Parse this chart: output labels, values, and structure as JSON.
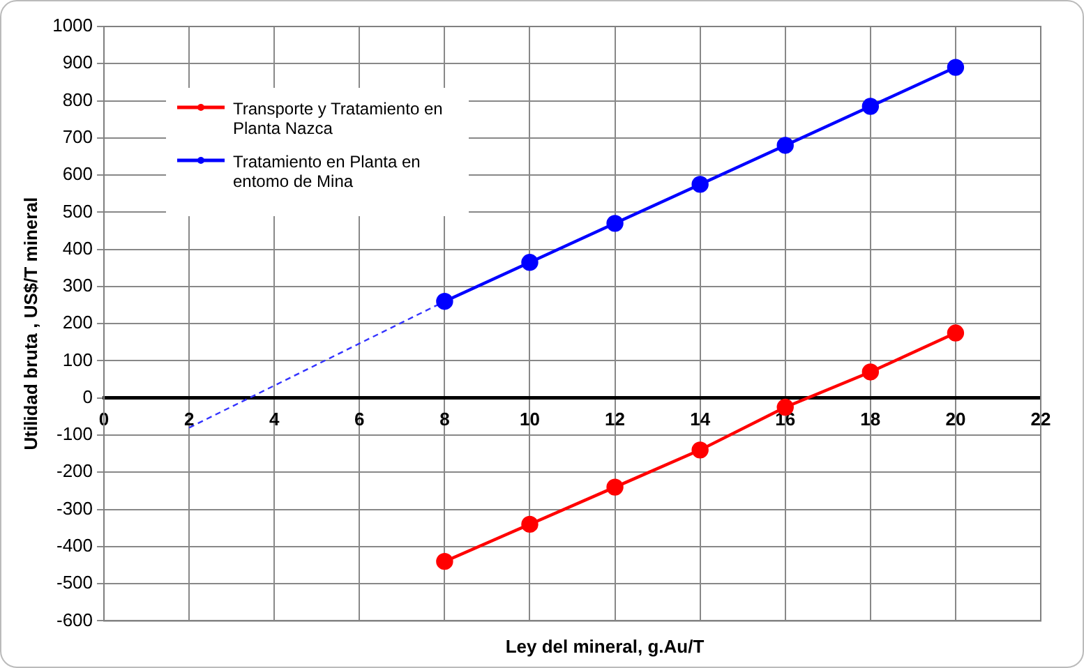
{
  "chart_data": {
    "type": "line",
    "xlabel": "Ley del mineral, g.Au/T",
    "ylabel": "Utilidad bruta , US$/T mineral",
    "xlim": [
      0,
      22
    ],
    "xticks": [
      0,
      2,
      4,
      6,
      8,
      10,
      12,
      14,
      16,
      18,
      20,
      22
    ],
    "ylim": [
      -600,
      1000
    ],
    "yticks": [
      -600,
      -500,
      -400,
      -300,
      -200,
      -100,
      0,
      100,
      200,
      300,
      400,
      500,
      600,
      700,
      800,
      900,
      1000
    ],
    "grid": true,
    "legend": "top left",
    "marker": "circle",
    "series": [
      {
        "name": "Transporte y Tratamiento en Planta Nazca",
        "color": "#ff0000",
        "x": [
          8,
          10,
          12,
          14,
          16,
          18,
          20
        ],
        "values": [
          -440,
          -340,
          -240,
          -140,
          -25,
          70,
          175
        ]
      },
      {
        "name": "Tratamiento en Planta en entomo de Mina",
        "color": "#0000ff",
        "x": [
          8,
          10,
          12,
          14,
          16,
          18,
          20
        ],
        "values": [
          260,
          365,
          470,
          575,
          680,
          785,
          890
        ]
      },
      {
        "color": "#3333ff",
        "x": [
          2,
          8
        ],
        "values": [
          -80,
          260
        ],
        "line_style": "dashed",
        "marker": "none"
      }
    ]
  }
}
